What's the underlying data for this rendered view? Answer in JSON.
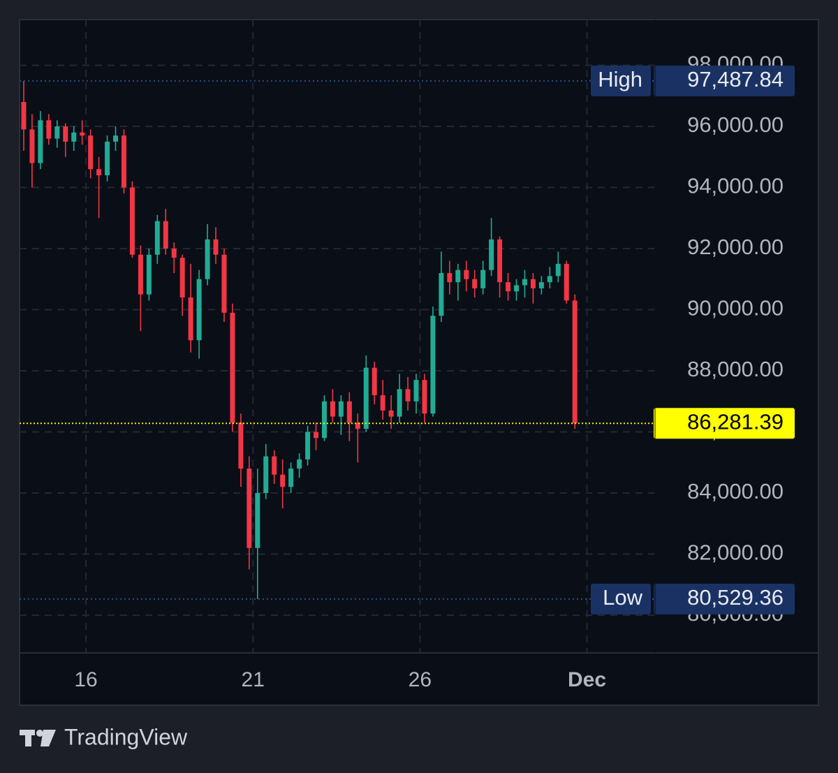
{
  "chart_data": {
    "type": "candlestick",
    "open": [
      96800,
      95900,
      94800,
      96200,
      95600,
      96000,
      95500,
      95800,
      95700,
      94600,
      94400,
      95500,
      95700,
      94000,
      91800,
      90500,
      91800,
      92900,
      92000,
      91700,
      90400,
      89000,
      91000,
      92300,
      91800,
      89900,
      86300,
      84800,
      82200,
      84000,
      85200,
      84600,
      84200,
      84800,
      85100,
      86000,
      85800,
      87000,
      86500,
      87000,
      86300,
      86100,
      88100,
      87200,
      86700,
      86500,
      87400,
      87000,
      87700,
      86600,
      89800,
      91200,
      90900,
      91300,
      91000,
      90700,
      91300,
      92300,
      90900,
      90600,
      90800,
      91000,
      90700,
      90900,
      91100,
      91500,
      90300
    ],
    "high": [
      97487.84,
      96400,
      96500,
      96400,
      96200,
      96100,
      96000,
      96200,
      95900,
      95000,
      95700,
      96000,
      95900,
      94200,
      92100,
      92000,
      93100,
      93300,
      92200,
      91800,
      91500,
      91300,
      92800,
      92700,
      92000,
      90200,
      86600,
      85200,
      84800,
      85600,
      85400,
      85100,
      85000,
      85300,
      86200,
      86300,
      87200,
      87400,
      87200,
      87300,
      86600,
      88500,
      88300,
      87700,
      87200,
      87900,
      87800,
      87900,
      87900,
      90100,
      91900,
      91600,
      91500,
      91600,
      91300,
      91600,
      93000,
      92400,
      91200,
      91000,
      91300,
      91200,
      91100,
      91400,
      91900,
      91600,
      90500
    ],
    "low": [
      95200,
      94000,
      94600,
      95400,
      95300,
      95000,
      95200,
      95400,
      94300,
      93000,
      94200,
      95200,
      93800,
      91700,
      89300,
      90300,
      91500,
      91800,
      91200,
      89800,
      88600,
      88400,
      90800,
      91500,
      89600,
      86000,
      84200,
      81500,
      80529.36,
      83800,
      84300,
      83500,
      84000,
      84500,
      84900,
      85400,
      85700,
      86300,
      85900,
      85700,
      85000,
      86000,
      86900,
      86400,
      86100,
      86300,
      86700,
      86600,
      86300,
      86500,
      89600,
      90500,
      90300,
      90600,
      90400,
      90500,
      91100,
      90400,
      90300,
      90300,
      90400,
      90200,
      90500,
      90700,
      90900,
      90200,
      86100
    ],
    "close": [
      95900,
      94800,
      96200,
      95600,
      96000,
      95500,
      95800,
      95700,
      94600,
      94400,
      95500,
      95700,
      94000,
      91800,
      90500,
      91800,
      92900,
      92000,
      91700,
      90400,
      89000,
      91000,
      92300,
      91800,
      89900,
      86300,
      84800,
      82200,
      84000,
      85200,
      84600,
      84200,
      84800,
      85100,
      86000,
      85800,
      87000,
      86500,
      87000,
      86300,
      86100,
      88100,
      87200,
      86700,
      86500,
      87400,
      87000,
      87700,
      86600,
      89800,
      91200,
      90900,
      91300,
      91000,
      90700,
      91300,
      92300,
      90900,
      90600,
      90800,
      91000,
      90700,
      90900,
      91100,
      91500,
      90300,
      86281.39
    ],
    "up_color": "#22ab94",
    "down_color": "#f23645",
    "xlim": [
      -0.5,
      75.6
    ],
    "xticks": [
      {
        "value": 7.45,
        "label": "16"
      },
      {
        "value": 27.45,
        "label": "21"
      },
      {
        "value": 47.45,
        "label": "26"
      },
      {
        "value": 67.45,
        "label": "Dec"
      }
    ],
    "ylim": [
      78766,
      99497
    ],
    "yticks": [
      {
        "value": 80000,
        "label": "80,000.00"
      },
      {
        "value": 82000,
        "label": "82,000.00"
      },
      {
        "value": 84000,
        "label": "84,000.00"
      },
      {
        "value": 86000,
        "label": "86,000.00"
      },
      {
        "value": 88000,
        "label": "88,000.00"
      },
      {
        "value": 90000,
        "label": "90,000.00"
      },
      {
        "value": 92000,
        "label": "92,000.00"
      },
      {
        "value": 94000,
        "label": "94,000.00"
      },
      {
        "value": 96000,
        "label": "96,000.00"
      },
      {
        "value": 98000,
        "label": "98,000.00"
      }
    ],
    "grid": true,
    "high_marker": {
      "label": "High",
      "value": 97487.84,
      "value_label": "97,487.84"
    },
    "low_marker": {
      "label": "Low",
      "value": 80529.36,
      "value_label": "80,529.36"
    },
    "last_price": {
      "value": 86281.39,
      "value_label": "86,281.39"
    }
  },
  "brand": "TradingView"
}
